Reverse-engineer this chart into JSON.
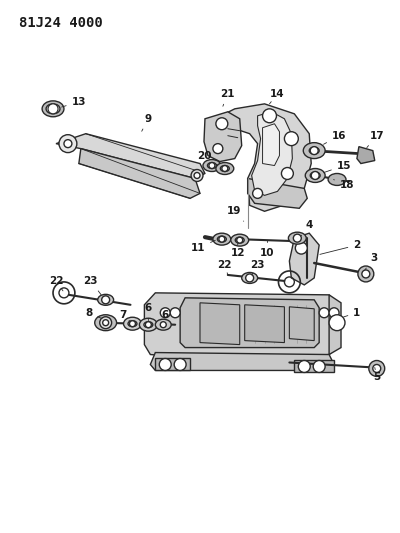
{
  "title": "81J24 4000",
  "bg_color": "#ffffff",
  "line_color": "#2a2a2a",
  "text_color": "#1a1a1a",
  "title_fontsize": 10,
  "label_fontsize": 7.5,
  "figsize": [
    4.0,
    5.33
  ],
  "dpi": 100
}
